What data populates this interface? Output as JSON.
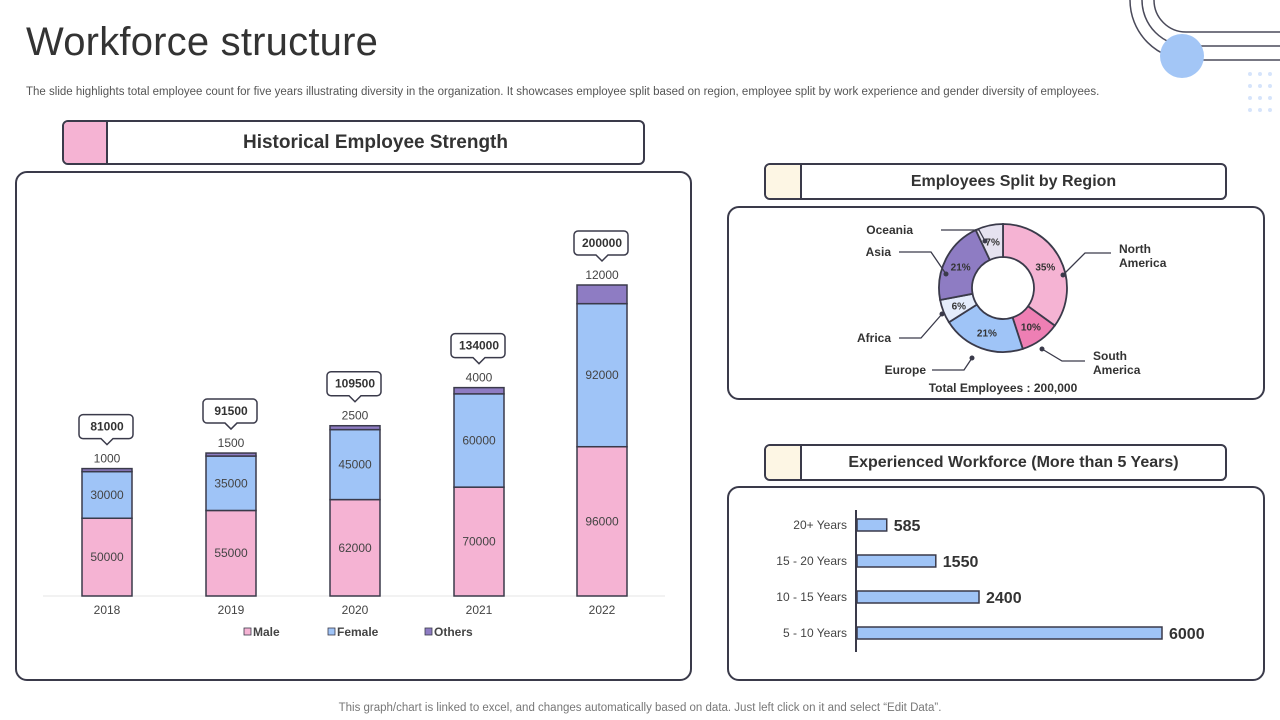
{
  "page": {
    "title": "Workforce structure",
    "subtitle": "The slide highlights total employee count for five years illustrating diversity in the organization. It showcases employee split based on region, employee split by work experience and gender diversity of employees.",
    "footer": "This graph/chart is linked to excel,  and changes automatically based on data. Just left click on it and select “Edit Data”."
  },
  "sections": {
    "historical": "Historical Employee Strength",
    "region": "Employees Split by Region",
    "experience": "Experienced Workforce (More than 5 Years)"
  },
  "colors": {
    "male": "#f5b3d3",
    "female": "#9fc4f7",
    "others": "#8e7cc3",
    "outline": "#3a3a4a",
    "accent_circle": "#a3c6f6",
    "pink_swatch": "#f5b3d3",
    "cream_swatch": "#fdf6e4"
  },
  "chart_data": [
    {
      "type": "bar",
      "stacked": true,
      "title": "Historical Employee Strength",
      "categories": [
        "2018",
        "2019",
        "2020",
        "2021",
        "2022"
      ],
      "series": [
        {
          "name": "Male",
          "values": [
            50000,
            55000,
            62000,
            70000,
            96000
          ]
        },
        {
          "name": "Female",
          "values": [
            30000,
            35000,
            45000,
            60000,
            92000
          ]
        },
        {
          "name": "Others",
          "values": [
            1000,
            1500,
            2500,
            4000,
            12000
          ]
        }
      ],
      "totals": [
        81000,
        91500,
        109500,
        134000,
        200000
      ],
      "legend": [
        "Male",
        "Female",
        "Others"
      ]
    },
    {
      "type": "pie",
      "donut": true,
      "title": "Employees Split by Region",
      "categories": [
        "North America",
        "South America",
        "Europe",
        "Africa",
        "Asia",
        "Oceania"
      ],
      "label_lines": [
        [
          "North",
          "America"
        ],
        [
          "South",
          "America"
        ],
        [
          "Europe"
        ],
        [
          "Africa"
        ],
        [
          "Asia"
        ],
        [
          "Oceania"
        ]
      ],
      "values": [
        35,
        10,
        21,
        6,
        21,
        7
      ],
      "value_labels": [
        "35%",
        "10%",
        "21%",
        "6%",
        "21%",
        "7%"
      ],
      "slice_colors": [
        "#f5b3d3",
        "#ee7fb4",
        "#9fc4f7",
        "#e4ecfb",
        "#8e7cc3",
        "#e5e2f0"
      ],
      "total_label": "Total Employees : 200,000"
    },
    {
      "type": "bar",
      "orientation": "horizontal",
      "title": "Experienced Workforce (More than 5 Years)",
      "categories": [
        "20+ Years",
        "15 - 20 Years",
        "10 - 15 Years",
        "5 - 10 Years"
      ],
      "values": [
        585,
        1550,
        2400,
        6000
      ]
    }
  ]
}
